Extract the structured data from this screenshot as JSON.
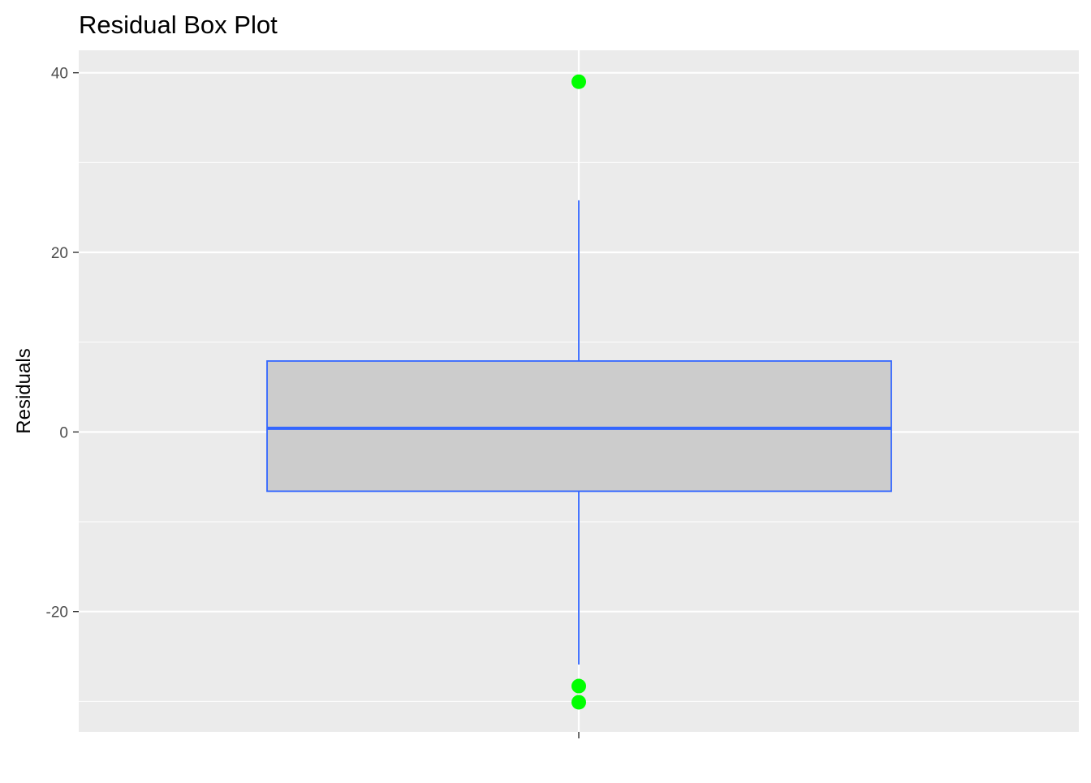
{
  "chart_data": {
    "type": "boxplot",
    "title": "Residual Box Plot",
    "xlabel": "",
    "ylabel": "Residuals",
    "ylim": [
      -33.4,
      42.5
    ],
    "y_ticks": [
      -20,
      0,
      20,
      40
    ],
    "y_tick_labels": [
      "-20",
      "0",
      "20",
      "40"
    ],
    "y_minor_ticks": [
      -30,
      -10,
      10,
      30
    ],
    "grid": true,
    "categories": [
      ""
    ],
    "box": {
      "lower_whisker": -25.9,
      "q1": -6.6,
      "median": 0.4,
      "q3": 7.9,
      "upper_whisker": 25.8
    },
    "outliers": [
      39.0,
      -28.3,
      -30.1
    ],
    "colors": {
      "panel_background": "#EBEBEB",
      "grid": "#FFFFFF",
      "box_fill": "#CCCCCC",
      "box_line": "#3366FF",
      "outlier": "#00FF00"
    }
  }
}
